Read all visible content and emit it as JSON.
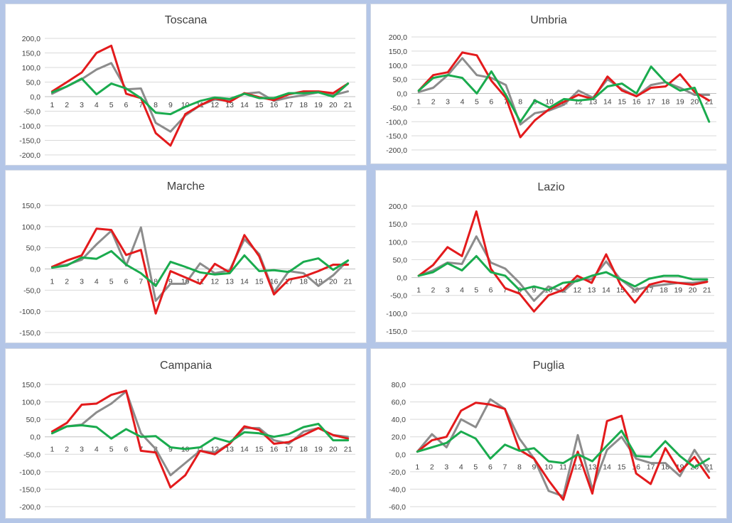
{
  "colors": {
    "red": "#e31a1c",
    "gray": "#8c8c8c",
    "green": "#1aab4e"
  },
  "chart_data": [
    {
      "type": "line",
      "title": "Toscana",
      "categories": [
        "1",
        "2",
        "3",
        "4",
        "5",
        "6",
        "7",
        "8",
        "9",
        "10",
        "11",
        "12",
        "13",
        "14",
        "15",
        "16",
        "17",
        "18",
        "19",
        "20",
        "21"
      ],
      "ylim": [
        -200,
        200
      ],
      "yticks": [
        200,
        150,
        100,
        50,
        0,
        -50,
        -100,
        -150,
        -200
      ],
      "ytick_labels": [
        "200,0",
        "150,0",
        "100,0",
        "50,0",
        "0,0",
        "-50,0",
        "-100,0",
        "-150,0",
        "-200,0"
      ],
      "series": [
        {
          "color": "#8c8c8c",
          "values": [
            10,
            35,
            60,
            93,
            115,
            25,
            28,
            -90,
            -120,
            -65,
            -30,
            -10,
            -15,
            10,
            15,
            -15,
            -3,
            5,
            15,
            5,
            18
          ]
        },
        {
          "color": "#e31a1c",
          "values": [
            18,
            50,
            83,
            150,
            175,
            10,
            -5,
            -125,
            -168,
            -60,
            -30,
            -5,
            -18,
            12,
            -2,
            -12,
            8,
            18,
            18,
            12,
            45
          ]
        },
        {
          "color": "#1aab4e",
          "values": [
            15,
            35,
            62,
            8,
            45,
            28,
            -5,
            -55,
            -60,
            -35,
            -15,
            -3,
            -8,
            10,
            -5,
            -5,
            12,
            12,
            15,
            0,
            45
          ]
        }
      ]
    },
    {
      "type": "line",
      "title": "Umbria",
      "categories": [
        "1",
        "2",
        "3",
        "4",
        "5",
        "6",
        "7",
        "8",
        "9",
        "10",
        "11",
        "12",
        "13",
        "14",
        "15",
        "16",
        "17",
        "18",
        "19",
        "20",
        "21"
      ],
      "ylim": [
        -200,
        200
      ],
      "yticks": [
        200,
        150,
        100,
        50,
        0,
        -50,
        -100,
        -150,
        -200
      ],
      "ytick_labels": [
        "200,0",
        "150,0",
        "100,0",
        "50,0",
        "0,0",
        "-50,0",
        "-100,0",
        "-150,0",
        "-200,0"
      ],
      "series": [
        {
          "color": "#8c8c8c",
          "values": [
            5,
            20,
            65,
            125,
            65,
            55,
            30,
            -110,
            -70,
            -60,
            -40,
            10,
            -15,
            50,
            15,
            -10,
            30,
            40,
            20,
            -5,
            -5
          ]
        },
        {
          "color": "#e31a1c",
          "values": [
            10,
            65,
            75,
            145,
            135,
            45,
            -15,
            -155,
            -95,
            -55,
            -30,
            -5,
            -20,
            60,
            10,
            -10,
            20,
            25,
            68,
            5,
            -25
          ]
        },
        {
          "color": "#1aab4e",
          "values": [
            10,
            55,
            65,
            55,
            0,
            78,
            -5,
            -100,
            -25,
            -50,
            -20,
            -25,
            -20,
            25,
            35,
            0,
            95,
            40,
            10,
            20,
            -100
          ]
        }
      ]
    },
    {
      "type": "line",
      "title": "Marche",
      "categories": [
        "1",
        "2",
        "3",
        "4",
        "5",
        "6",
        "7",
        "8",
        "9",
        "10",
        "11",
        "12",
        "13",
        "14",
        "15",
        "16",
        "17",
        "18",
        "19",
        "20",
        "21"
      ],
      "ylim": [
        -150,
        150
      ],
      "yticks": [
        150,
        100,
        50,
        0,
        -50,
        -100,
        -150
      ],
      "ytick_labels": [
        "150,0",
        "100,0",
        "50,0",
        "0,0",
        "-50,0",
        "-100,0",
        "-150,0"
      ],
      "series": [
        {
          "color": "#8c8c8c",
          "values": [
            5,
            10,
            22,
            58,
            90,
            8,
            98,
            -75,
            -35,
            -35,
            13,
            -10,
            -3,
            70,
            35,
            -55,
            -5,
            -10,
            -40,
            -15,
            20
          ]
        },
        {
          "color": "#e31a1c",
          "values": [
            5,
            20,
            32,
            95,
            92,
            33,
            45,
            -105,
            -5,
            -20,
            -35,
            12,
            -8,
            80,
            30,
            -60,
            -25,
            -18,
            -5,
            10,
            10
          ]
        },
        {
          "color": "#1aab4e",
          "values": [
            3,
            8,
            27,
            24,
            42,
            10,
            -10,
            -40,
            17,
            5,
            -8,
            -13,
            -10,
            32,
            -5,
            -3,
            -7,
            17,
            25,
            -2,
            20
          ]
        }
      ]
    },
    {
      "type": "line",
      "title": "Lazio",
      "categories": [
        "1",
        "2",
        "3",
        "4",
        "5",
        "6",
        "7",
        "8",
        "9",
        "10",
        "11",
        "12",
        "13",
        "14",
        "15",
        "16",
        "17",
        "18",
        "19",
        "20",
        "21"
      ],
      "ylim": [
        -150,
        200
      ],
      "yticks": [
        200,
        150,
        100,
        50,
        0,
        -50,
        -100,
        -150
      ],
      "ytick_labels": [
        "200,0",
        "150,0",
        "100,0",
        "50,0",
        "0,0",
        "-50,0",
        "-100,0",
        "-150,0"
      ],
      "series": [
        {
          "color": "#8c8c8c",
          "values": [
            5,
            20,
            42,
            38,
            115,
            42,
            25,
            -15,
            -65,
            -25,
            -40,
            -5,
            -5,
            45,
            -5,
            -35,
            -25,
            -20,
            -15,
            -15,
            -10
          ]
        },
        {
          "color": "#e31a1c",
          "values": [
            5,
            35,
            85,
            60,
            185,
            25,
            -30,
            -45,
            -95,
            -50,
            -35,
            5,
            -15,
            65,
            -20,
            -70,
            -20,
            -10,
            -15,
            -20,
            -12
          ]
        },
        {
          "color": "#1aab4e",
          "values": [
            5,
            15,
            40,
            20,
            60,
            15,
            5,
            -35,
            -25,
            -35,
            -15,
            -10,
            5,
            15,
            -5,
            -25,
            -3,
            5,
            5,
            -5,
            -5
          ]
        }
      ]
    },
    {
      "type": "line",
      "title": "Campania",
      "categories": [
        "1",
        "2",
        "3",
        "4",
        "5",
        "6",
        "7",
        "8",
        "9",
        "10",
        "11",
        "12",
        "13",
        "14",
        "15",
        "16",
        "17",
        "18",
        "19",
        "20",
        "21"
      ],
      "ylim": [
        -200,
        150
      ],
      "yticks": [
        150,
        100,
        50,
        0,
        -50,
        -100,
        -150,
        -200
      ],
      "ytick_labels": [
        "150,0",
        "100,0",
        "50,0",
        "0,0",
        "-50,0",
        "-100,0",
        "-150,0",
        "-200,0"
      ],
      "series": [
        {
          "color": "#8c8c8c",
          "values": [
            15,
            30,
            35,
            70,
            95,
            130,
            10,
            -35,
            -110,
            -75,
            -40,
            -45,
            -20,
            25,
            25,
            -10,
            -20,
            15,
            25,
            5,
            0
          ]
        },
        {
          "color": "#e31a1c",
          "values": [
            15,
            40,
            92,
            95,
            120,
            132,
            -40,
            -45,
            -145,
            -110,
            -40,
            -50,
            -20,
            30,
            20,
            -20,
            -15,
            5,
            25,
            5,
            -5
          ]
        },
        {
          "color": "#1aab4e",
          "values": [
            10,
            30,
            33,
            28,
            -5,
            22,
            0,
            2,
            -30,
            -35,
            -30,
            -3,
            -15,
            13,
            10,
            0,
            8,
            28,
            37,
            -10,
            -10
          ]
        }
      ]
    },
    {
      "type": "line",
      "title": "Puglia",
      "categories": [
        "1",
        "2",
        "3",
        "4",
        "5",
        "6",
        "7",
        "8",
        "9",
        "10",
        "11",
        "12",
        "13",
        "14",
        "15",
        "16",
        "17",
        "18",
        "19",
        "20",
        "21"
      ],
      "ylim": [
        -60,
        80
      ],
      "yticks": [
        80,
        60,
        40,
        20,
        0,
        -20,
        -40,
        -60
      ],
      "ytick_labels": [
        "80,0",
        "60,0",
        "40,0",
        "20,0",
        "0,0",
        "-20,0",
        "-40,0",
        "-60,0"
      ],
      "series": [
        {
          "color": "#8c8c8c",
          "values": [
            3,
            23,
            8,
            40,
            31,
            63,
            52,
            18,
            -5,
            -42,
            -48,
            22,
            -40,
            5,
            20,
            -5,
            -10,
            -10,
            -25,
            5,
            -20
          ]
        },
        {
          "color": "#e31a1c",
          "values": [
            3,
            16,
            20,
            50,
            59,
            57,
            52,
            5,
            -5,
            -30,
            -52,
            3,
            -45,
            38,
            44,
            -22,
            -34,
            7,
            -20,
            -3,
            -27
          ]
        },
        {
          "color": "#1aab4e",
          "values": [
            3,
            8,
            13,
            26,
            18,
            -5,
            11,
            4,
            7,
            -8,
            -10,
            0,
            -8,
            10,
            27,
            -2,
            -3,
            15,
            -2,
            -15,
            -5
          ]
        }
      ]
    }
  ]
}
